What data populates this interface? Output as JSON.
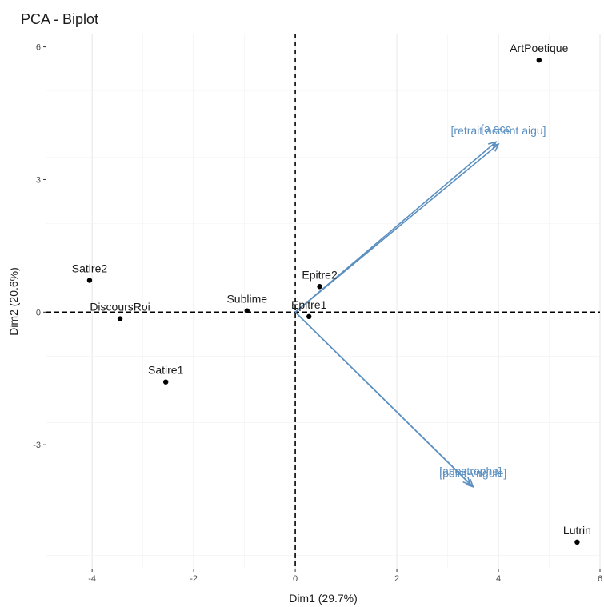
{
  "chart_data": {
    "type": "scatter",
    "title": "PCA - Biplot",
    "xlabel": "Dim1 (29.7%)",
    "ylabel": "Dim2 (20.6%)",
    "xlim": [
      -4.9,
      6.0
    ],
    "ylim": [
      -5.8,
      6.3
    ],
    "x_ticks": [
      -4,
      -2,
      0,
      2,
      4,
      6
    ],
    "y_ticks": [
      -3,
      0,
      3,
      6
    ],
    "x_tick_labels": [
      "-4",
      "-2",
      "0",
      "2",
      "4",
      "6"
    ],
    "y_tick_labels": [
      "-3",
      "0",
      "3",
      "6"
    ],
    "grid": true,
    "reference_lines": {
      "x": 0,
      "y": 0,
      "style": "dashed"
    },
    "point_color": "#000000",
    "arrow_color": "#5b8fc0",
    "points": [
      {
        "label": "ArtPoetique",
        "x": 4.8,
        "y": 5.7
      },
      {
        "label": "Satire2",
        "x": -4.05,
        "y": 0.72
      },
      {
        "label": "DiscoursRoi",
        "x": -3.45,
        "y": -0.15
      },
      {
        "label": "Sublime",
        "x": -0.95,
        "y": 0.03
      },
      {
        "label": "Epitre2",
        "x": 0.48,
        "y": 0.58
      },
      {
        "label": "Epitre1",
        "x": 0.27,
        "y": -0.1
      },
      {
        "label": "Satire1",
        "x": -2.55,
        "y": -1.58
      },
      {
        "label": "Lutrin",
        "x": 5.55,
        "y": -5.2
      }
    ],
    "variables": [
      {
        "label": "[a acc",
        "x": 3.95,
        "y": 3.85
      },
      {
        "label": "[retrait accent aigu]",
        "x": 4.0,
        "y": 3.8
      },
      {
        "label": "[apostrophe]",
        "x": 3.45,
        "y": -3.9
      },
      {
        "label": "[point-virgule]",
        "x": 3.5,
        "y": -3.95
      }
    ]
  }
}
